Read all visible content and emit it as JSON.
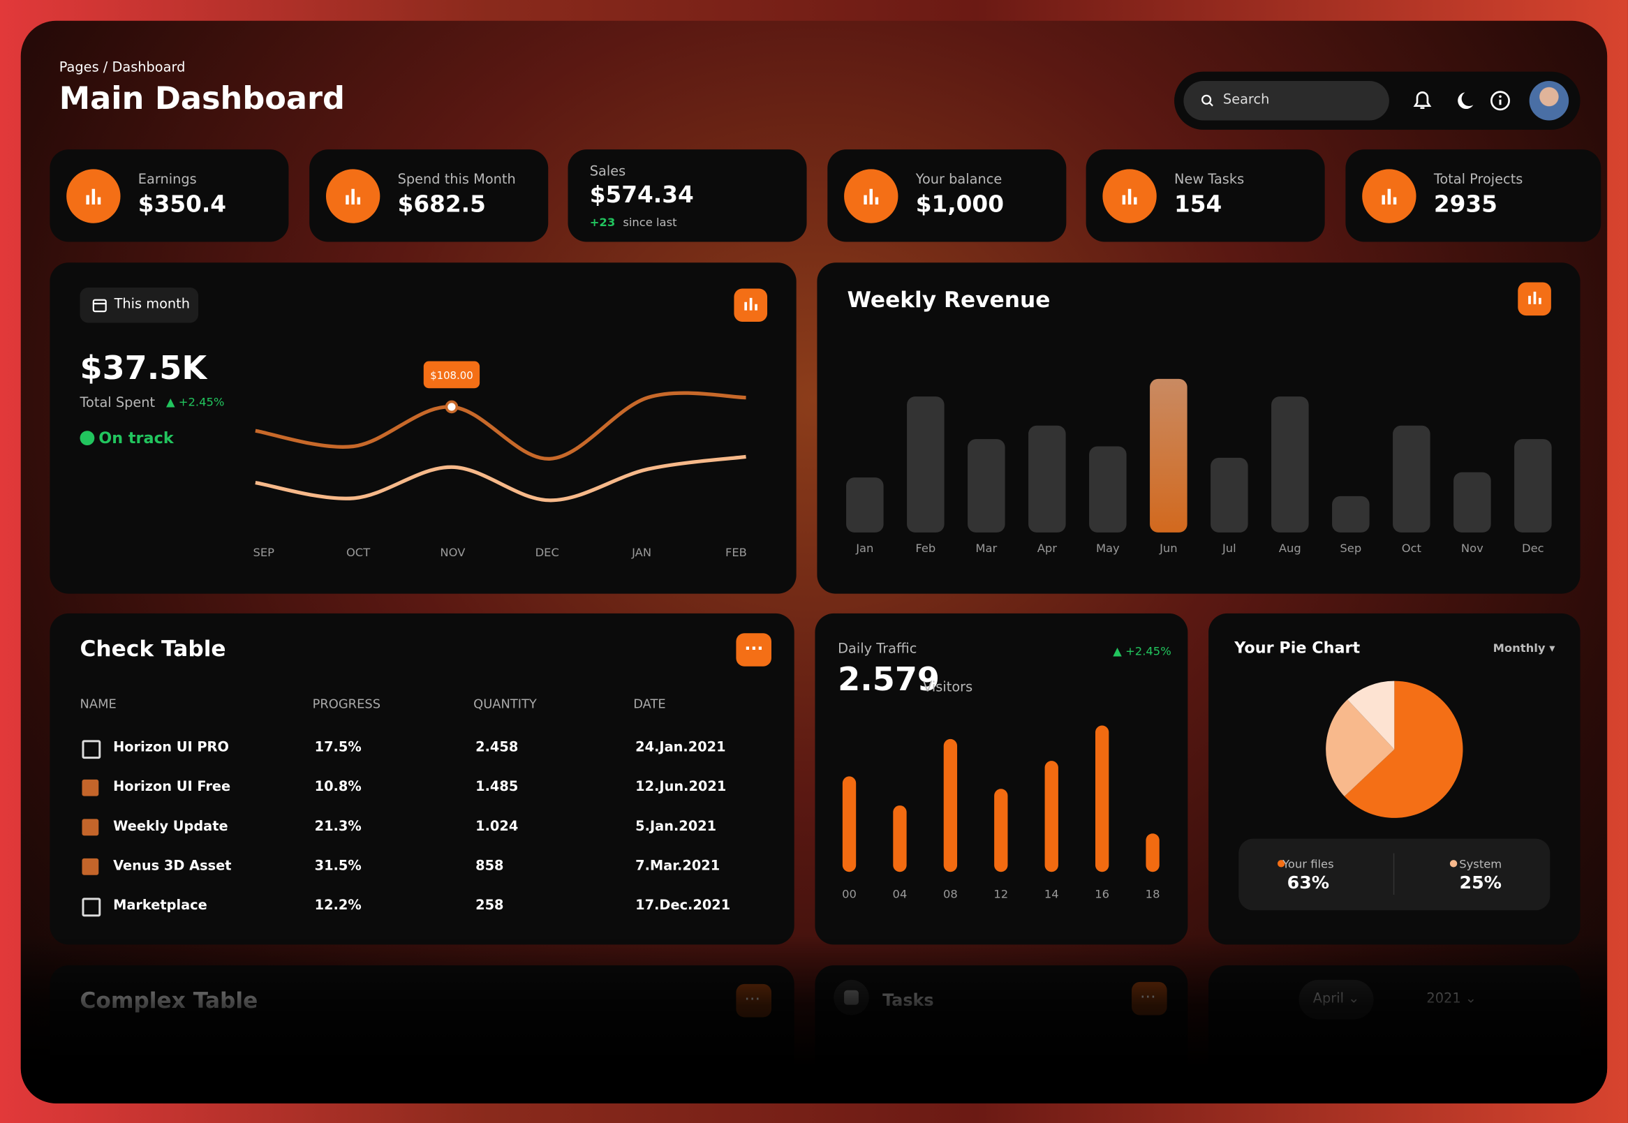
{
  "header": {
    "breadcrumb": "Pages / Dashboard",
    "title": "Main Dashboard",
    "search": "Search"
  },
  "stats": [
    {
      "label": "Earnings",
      "value": "$350.4"
    },
    {
      "label": "Spend this Month",
      "value": "$682.5"
    },
    {
      "label": "Sales",
      "value": "$574.34",
      "change": "+23",
      "change_text": "since last"
    },
    {
      "label": "Your balance",
      "value": "$1,000"
    },
    {
      "label": "New Tasks",
      "value": "154"
    },
    {
      "label": "Total Projects",
      "value": "2935"
    }
  ],
  "spent": {
    "period": "This month",
    "amount": "$37.5K",
    "label": "Total Spent",
    "change": "+2.45%",
    "status": "On track"
  },
  "chart_data": [
    {
      "type": "line",
      "categories": [
        "SEP",
        "OCT",
        "NOV",
        "DEC",
        "JAN",
        "FEB"
      ],
      "series": [
        {
          "color": "#c8692a",
          "values": [
            85,
            70,
            108,
            58,
            117,
            117
          ],
          "value_labels": [
            null,
            null,
            "$108.00",
            null,
            null,
            null
          ]
        },
        {
          "color": "#f7b98a",
          "values": [
            35,
            20,
            50,
            18,
            48,
            60
          ]
        }
      ],
      "ylim": [
        0,
        130
      ]
    },
    {
      "type": "bar",
      "title": "Weekly Revenue",
      "categories": [
        "Jan",
        "Feb",
        "Mar",
        "Apr",
        "May",
        "Jun",
        "Jul",
        "Aug",
        "Sep",
        "Oct",
        "Nov",
        "Dec"
      ],
      "values": [
        53,
        131,
        90,
        103,
        83,
        148,
        72,
        131,
        35,
        103,
        58,
        90
      ],
      "colors": [
        "#333333",
        "#333333",
        "#333333",
        "#333333",
        "#333333",
        "#d2691e",
        "#333333",
        "#333333",
        "#333333",
        "#333333",
        "#333333",
        "#333333"
      ],
      "ylim": [
        0,
        160
      ]
    },
    {
      "type": "bar",
      "title": "Daily Traffic",
      "total": "2.579",
      "unit": "Visitors",
      "change": "+2.45%",
      "categories": [
        "00",
        "04",
        "08",
        "12",
        "14",
        "16",
        "18"
      ],
      "values": [
        92,
        64,
        128,
        80,
        107,
        141,
        37
      ],
      "color": "#f26b11",
      "ylim": [
        0,
        150
      ]
    },
    {
      "type": "pie",
      "title": "Your Pie Chart",
      "period": "Monthly",
      "categories": [
        "Your files",
        "System",
        null
      ],
      "values": [
        63,
        25,
        12
      ],
      "value_labels": [
        "63%",
        "25%",
        null
      ],
      "colors": [
        "#f46f16",
        "#f8b98c",
        "#fde3d2"
      ]
    }
  ],
  "check_table": {
    "title": "Check Table",
    "columns": [
      "NAME",
      "PROGRESS",
      "QUANTITY",
      "DATE"
    ],
    "rows": [
      {
        "checked": false,
        "cells": [
          "Horizon UI PRO",
          "17.5%",
          "2.458",
          "24.Jan.2021"
        ]
      },
      {
        "checked": true,
        "cells": [
          "Horizon UI Free",
          "10.8%",
          "1.485",
          "12.Jun.2021"
        ]
      },
      {
        "checked": true,
        "cells": [
          "Weekly Update",
          "21.3%",
          "1.024",
          "5.Jan.2021"
        ]
      },
      {
        "checked": true,
        "cells": [
          "Venus 3D Asset",
          "31.5%",
          "858",
          "7.Mar.2021"
        ]
      },
      {
        "checked": false,
        "cells": [
          "Marketplace",
          "12.2%",
          "258",
          "17.Dec.2021"
        ]
      }
    ]
  },
  "footer_cards": {
    "complex_table": "Complex Table",
    "tasks": "Tasks",
    "month": "April",
    "year": "2021"
  }
}
